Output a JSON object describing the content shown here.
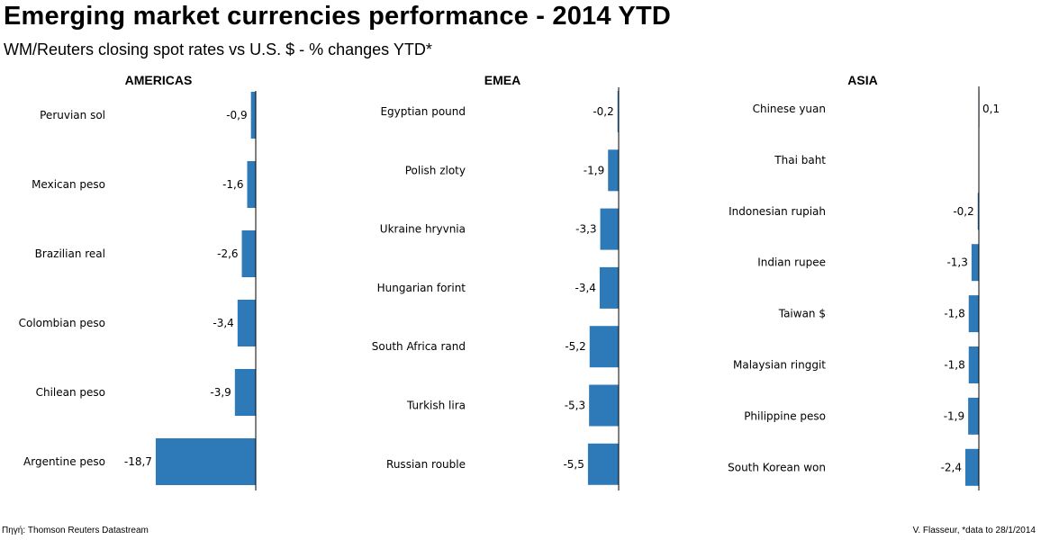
{
  "title": "Emerging market currencies performance - 2014 YTD",
  "subtitle": "WM/Reuters closing spot rates vs U.S. $ - % changes YTD*",
  "footer": {
    "source": "Πηγή: Thomson Reuters Datastream",
    "credit": "V. Flasseur, *data to 28/1/2014"
  },
  "chart_data": [
    {
      "type": "bar",
      "orientation": "horizontal",
      "title": "AMERICAS",
      "color": "#2e7ab9",
      "categories": [
        "Peruvian sol",
        "Mexican peso",
        "Brazilian real",
        "Colombian peso",
        "Chilean peso",
        "Argentine peso"
      ],
      "values": [
        -0.9,
        -1.6,
        -2.6,
        -3.4,
        -3.9,
        -18.7
      ],
      "labels": [
        "-0,9",
        "-1,6",
        "-2,6",
        "-3,4",
        "-3,9",
        "-18,7"
      ]
    },
    {
      "type": "bar",
      "orientation": "horizontal",
      "title": "EMEA",
      "color": "#2e7ab9",
      "categories": [
        "Egyptian pound",
        "Polish zloty",
        "Ukraine hryvnia",
        "Hungarian forint",
        "South Africa rand",
        "Turkish lira",
        "Russian rouble"
      ],
      "values": [
        -0.2,
        -1.9,
        -3.3,
        -3.4,
        -5.2,
        -5.3,
        -5.5
      ],
      "labels": [
        "-0,2",
        "-1,9",
        "-3,3",
        "-3,4",
        "-5,2",
        "-5,3",
        "-5,5"
      ]
    },
    {
      "type": "bar",
      "orientation": "horizontal",
      "title": "ASIA",
      "color": "#2e7ab9",
      "categories": [
        "Chinese yuan",
        "Thai baht",
        "Indonesian rupiah",
        "Indian rupee",
        "Taiwan $",
        "Malaysian ringgit",
        "Philippine peso",
        "South Korean won"
      ],
      "values": [
        0.1,
        0,
        -0.2,
        -1.3,
        -1.8,
        -1.8,
        -1.9,
        -2.4
      ],
      "labels": [
        "0,1",
        "",
        "-0,2",
        "-1,3",
        "-1,8",
        "-1,8",
        "-1,9",
        "-2,4"
      ]
    }
  ]
}
